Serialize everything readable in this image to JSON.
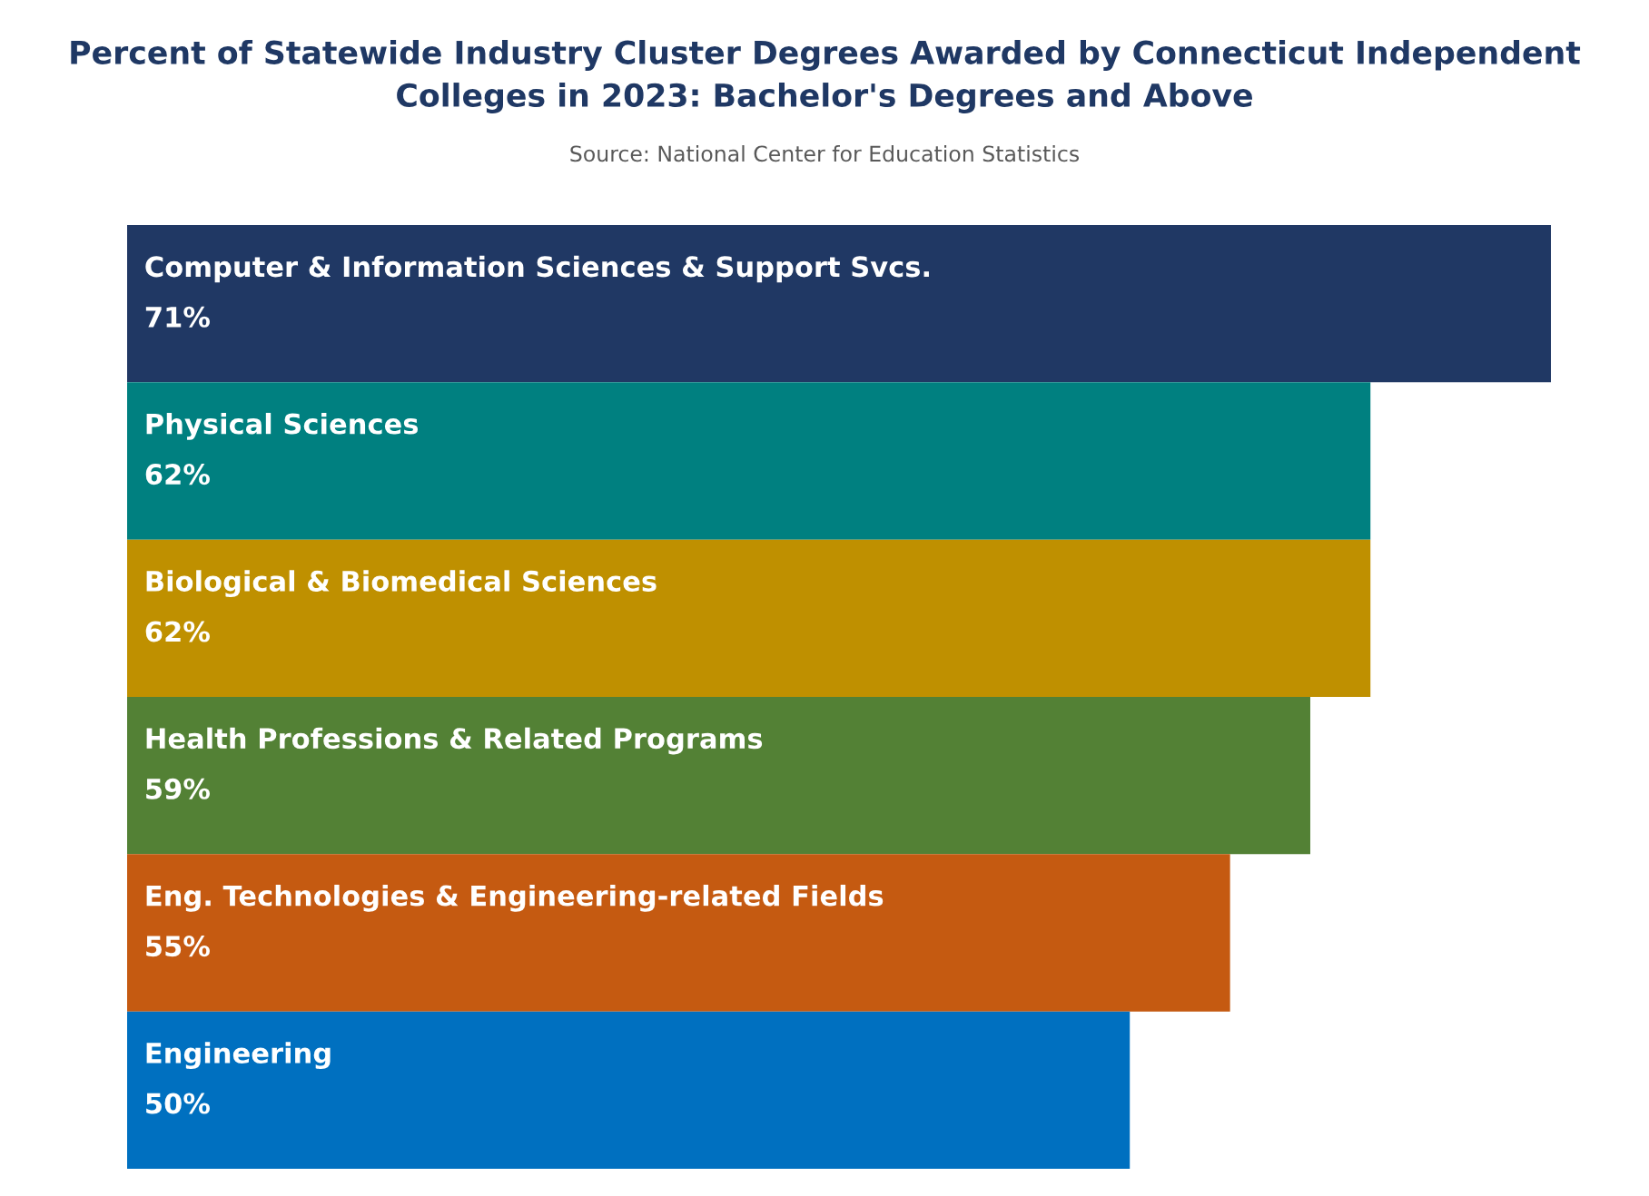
{
  "chart_data": {
    "type": "bar",
    "orientation": "horizontal",
    "title": "Percent of Statewide Industry Cluster Degrees Awarded by Connecticut Independent Colleges in 2023: Bachelor's Degrees and Above",
    "annotations": [
      "Source: National Center for Education Statistics"
    ],
    "categories": [
      "Computer & Information Sciences & Support Svcs.",
      "Physical Sciences",
      "Biological & Biomedical Sciences",
      "Health Professions & Related Programs",
      "Eng. Technologies & Engineering-related Fields",
      "Engineering"
    ],
    "values": [
      71,
      62,
      62,
      59,
      55,
      50
    ],
    "value_labels": [
      "71%",
      "62%",
      "62%",
      "59%",
      "55%",
      "50%"
    ],
    "colors": [
      "#203864",
      "#008080",
      "#bf9000",
      "#538135",
      "#c55a11",
      "#0070c0"
    ],
    "tick_labels": false
  }
}
